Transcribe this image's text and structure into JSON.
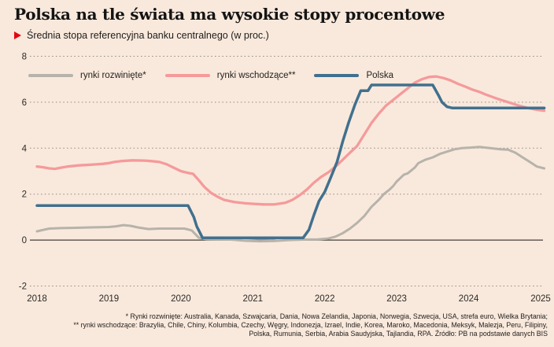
{
  "chart_data": {
    "type": "line",
    "title": "Polska na tle świata ma wysokie stopy procentowe",
    "subtitle": "Średnia stopa referencyjna banku centralnego (w proc.)",
    "xlim": [
      2018,
      2025.1
    ],
    "ylim": [
      -2,
      8
    ],
    "yticks": [
      8,
      6,
      4,
      2,
      0,
      -2
    ],
    "xticks": [
      2018,
      2019,
      2020,
      2021,
      2022,
      2023,
      2024,
      2025
    ],
    "grid": "horizontal dotted lines, solid zero axis",
    "legend_position": "top-left inside plot",
    "series": [
      {
        "name": "rynki rozwinięte*",
        "color": "#b7b3aa",
        "points": [
          [
            2018.0,
            0.38
          ],
          [
            2018.08,
            0.44
          ],
          [
            2018.17,
            0.5
          ],
          [
            2018.33,
            0.52
          ],
          [
            2018.5,
            0.53
          ],
          [
            2018.75,
            0.55
          ],
          [
            2019.0,
            0.57
          ],
          [
            2019.1,
            0.6
          ],
          [
            2019.2,
            0.65
          ],
          [
            2019.3,
            0.62
          ],
          [
            2019.4,
            0.55
          ],
          [
            2019.55,
            0.48
          ],
          [
            2019.7,
            0.5
          ],
          [
            2019.9,
            0.5
          ],
          [
            2020.05,
            0.5
          ],
          [
            2020.15,
            0.42
          ],
          [
            2020.25,
            0.1
          ],
          [
            2020.35,
            0.04
          ],
          [
            2020.5,
            0.03
          ],
          [
            2020.7,
            0.02
          ],
          [
            2020.9,
            -0.03
          ],
          [
            2021.1,
            -0.05
          ],
          [
            2021.3,
            -0.04
          ],
          [
            2021.5,
            0.0
          ],
          [
            2021.7,
            0.02
          ],
          [
            2021.9,
            0.03
          ],
          [
            2022.05,
            0.07
          ],
          [
            2022.15,
            0.15
          ],
          [
            2022.25,
            0.3
          ],
          [
            2022.35,
            0.5
          ],
          [
            2022.45,
            0.75
          ],
          [
            2022.55,
            1.05
          ],
          [
            2022.65,
            1.45
          ],
          [
            2022.75,
            1.75
          ],
          [
            2022.82,
            2.0
          ],
          [
            2022.9,
            2.2
          ],
          [
            2022.95,
            2.35
          ],
          [
            2023.0,
            2.55
          ],
          [
            2023.05,
            2.7
          ],
          [
            2023.1,
            2.85
          ],
          [
            2023.15,
            2.9
          ],
          [
            2023.25,
            3.15
          ],
          [
            2023.3,
            3.35
          ],
          [
            2023.4,
            3.5
          ],
          [
            2023.5,
            3.6
          ],
          [
            2023.6,
            3.75
          ],
          [
            2023.7,
            3.85
          ],
          [
            2023.8,
            3.95
          ],
          [
            2023.9,
            4.0
          ],
          [
            2024.0,
            4.02
          ],
          [
            2024.15,
            4.05
          ],
          [
            2024.3,
            4.0
          ],
          [
            2024.45,
            3.95
          ],
          [
            2024.55,
            3.93
          ],
          [
            2024.65,
            3.8
          ],
          [
            2024.75,
            3.6
          ],
          [
            2024.85,
            3.4
          ],
          [
            2024.95,
            3.2
          ],
          [
            2025.05,
            3.12
          ]
        ]
      },
      {
        "name": "rynki wschodzące**",
        "color": "#f59a9b",
        "points": [
          [
            2018.0,
            3.2
          ],
          [
            2018.08,
            3.17
          ],
          [
            2018.17,
            3.12
          ],
          [
            2018.25,
            3.1
          ],
          [
            2018.33,
            3.15
          ],
          [
            2018.42,
            3.2
          ],
          [
            2018.58,
            3.25
          ],
          [
            2018.75,
            3.28
          ],
          [
            2018.92,
            3.32
          ],
          [
            2019.0,
            3.35
          ],
          [
            2019.08,
            3.4
          ],
          [
            2019.17,
            3.44
          ],
          [
            2019.33,
            3.47
          ],
          [
            2019.5,
            3.46
          ],
          [
            2019.58,
            3.44
          ],
          [
            2019.7,
            3.4
          ],
          [
            2019.8,
            3.3
          ],
          [
            2019.9,
            3.15
          ],
          [
            2020.0,
            3.0
          ],
          [
            2020.1,
            2.92
          ],
          [
            2020.17,
            2.88
          ],
          [
            2020.25,
            2.6
          ],
          [
            2020.33,
            2.3
          ],
          [
            2020.42,
            2.05
          ],
          [
            2020.5,
            1.9
          ],
          [
            2020.6,
            1.75
          ],
          [
            2020.75,
            1.65
          ],
          [
            2020.9,
            1.6
          ],
          [
            2021.0,
            1.58
          ],
          [
            2021.15,
            1.55
          ],
          [
            2021.3,
            1.55
          ],
          [
            2021.45,
            1.62
          ],
          [
            2021.55,
            1.75
          ],
          [
            2021.65,
            1.95
          ],
          [
            2021.75,
            2.2
          ],
          [
            2021.85,
            2.5
          ],
          [
            2021.95,
            2.75
          ],
          [
            2022.05,
            2.95
          ],
          [
            2022.15,
            3.2
          ],
          [
            2022.25,
            3.5
          ],
          [
            2022.35,
            3.8
          ],
          [
            2022.45,
            4.1
          ],
          [
            2022.55,
            4.6
          ],
          [
            2022.65,
            5.1
          ],
          [
            2022.75,
            5.5
          ],
          [
            2022.85,
            5.85
          ],
          [
            2022.95,
            6.1
          ],
          [
            2023.05,
            6.35
          ],
          [
            2023.15,
            6.6
          ],
          [
            2023.25,
            6.85
          ],
          [
            2023.35,
            7.0
          ],
          [
            2023.45,
            7.1
          ],
          [
            2023.55,
            7.12
          ],
          [
            2023.65,
            7.05
          ],
          [
            2023.75,
            6.95
          ],
          [
            2023.85,
            6.8
          ],
          [
            2023.95,
            6.68
          ],
          [
            2024.05,
            6.55
          ],
          [
            2024.15,
            6.45
          ],
          [
            2024.25,
            6.32
          ],
          [
            2024.4,
            6.15
          ],
          [
            2024.55,
            6.0
          ],
          [
            2024.7,
            5.85
          ],
          [
            2024.85,
            5.73
          ],
          [
            2024.95,
            5.67
          ],
          [
            2025.05,
            5.63
          ]
        ]
      },
      {
        "name": "Polska",
        "color": "#41708e",
        "points": [
          [
            2018.0,
            1.5
          ],
          [
            2020.1,
            1.5
          ],
          [
            2020.18,
            1.0
          ],
          [
            2020.22,
            0.6
          ],
          [
            2020.3,
            0.1
          ],
          [
            2021.7,
            0.1
          ],
          [
            2021.78,
            0.45
          ],
          [
            2021.85,
            1.1
          ],
          [
            2021.92,
            1.7
          ],
          [
            2022.0,
            2.1
          ],
          [
            2022.08,
            2.7
          ],
          [
            2022.17,
            3.4
          ],
          [
            2022.25,
            4.3
          ],
          [
            2022.33,
            5.1
          ],
          [
            2022.42,
            5.9
          ],
          [
            2022.5,
            6.5
          ],
          [
            2022.6,
            6.5
          ],
          [
            2022.65,
            6.75
          ],
          [
            2023.5,
            6.75
          ],
          [
            2023.58,
            6.3
          ],
          [
            2023.63,
            6.0
          ],
          [
            2023.7,
            5.8
          ],
          [
            2023.77,
            5.75
          ],
          [
            2025.05,
            5.75
          ]
        ]
      }
    ]
  },
  "footnote": {
    "line1": "* Rynki rozwinięte: Australia, Kanada, Szwajcaria, Dania, Nowa Zelandia, Japonia, Norwegia, Szwecja, USA, strefa euro, Wielka Brytania;",
    "line2": "** rynki wschodzące: Brazylia, Chile, Chiny, Kolumbia, Czechy, Węgry, Indonezja, Izrael, Indie, Korea, Maroko, Macedonia, Meksyk, Malezja, Peru, Filipiny,",
    "line3": "Polska, Rumunia, Serbia, Arabia Saudyjska, Tajlandia, RPA. Źródło: PB na podstawie danych BIS"
  },
  "colors": {
    "background": "#f9e9dc",
    "accent_red": "#e30613",
    "grid_line": "#8f887e",
    "zero_axis": "#45403a",
    "text_primary": "#141414",
    "text_secondary": "#24211e"
  }
}
